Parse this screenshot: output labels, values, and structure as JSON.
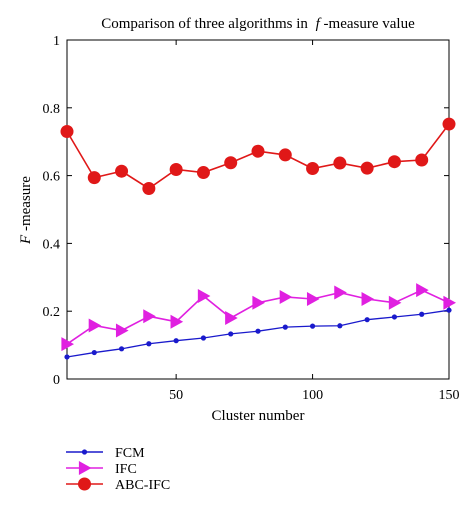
{
  "chart_data": {
    "type": "line",
    "title": "Comparison of three algorithms in",
    "title_italic": "f",
    "title_suffix": "-measure value",
    "xlabel": "Cluster number",
    "ylabel_italic": "F",
    "ylabel_suffix": "-measure",
    "xlim": [
      10,
      150
    ],
    "ylim": [
      0,
      1
    ],
    "xticks": [
      50,
      100,
      150
    ],
    "yticks": [
      0,
      0.2,
      0.4,
      0.6,
      0.8,
      1
    ],
    "ytick_labels": [
      "0",
      "0.2",
      "0.4",
      "0.6",
      "0.8",
      "1"
    ],
    "grid": false,
    "legend_position": "bottom-left, below plot",
    "x": [
      10,
      20,
      30,
      40,
      50,
      60,
      70,
      80,
      90,
      100,
      110,
      120,
      130,
      140,
      150
    ],
    "series": [
      {
        "name": "FCM",
        "color": "#1a1acc",
        "marker": "dot",
        "values": [
          0.065,
          0.078,
          0.089,
          0.104,
          0.113,
          0.121,
          0.133,
          0.141,
          0.153,
          0.156,
          0.157,
          0.175,
          0.183,
          0.191,
          0.203
        ]
      },
      {
        "name": "IFC",
        "color": "#e020e0",
        "marker": "triangle-right",
        "values": [
          0.103,
          0.158,
          0.143,
          0.185,
          0.169,
          0.245,
          0.18,
          0.225,
          0.242,
          0.236,
          0.255,
          0.236,
          0.225,
          0.262,
          0.225
        ]
      },
      {
        "name": "ABC-IFC",
        "color": "#e01818",
        "marker": "circle",
        "values": [
          0.73,
          0.594,
          0.613,
          0.562,
          0.618,
          0.609,
          0.638,
          0.672,
          0.661,
          0.621,
          0.637,
          0.622,
          0.641,
          0.646,
          0.752
        ]
      }
    ]
  }
}
